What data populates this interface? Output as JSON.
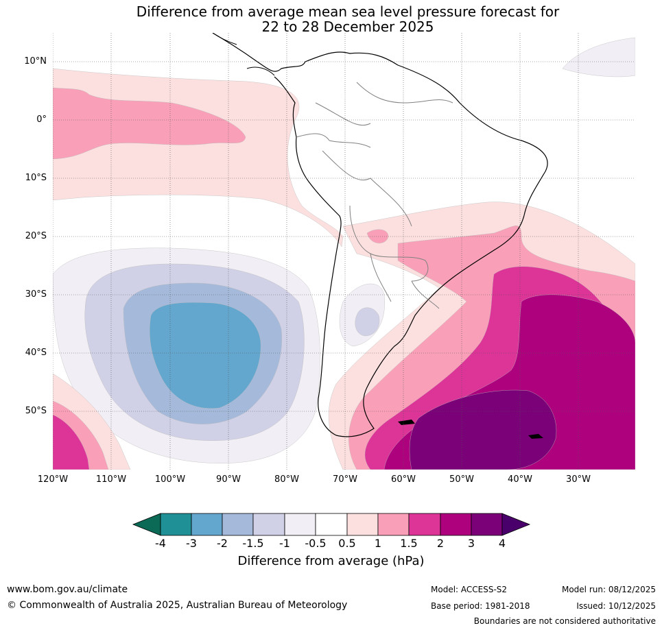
{
  "title": {
    "line1": "Difference from average mean sea level pressure forecast for",
    "line2": "22 to 28 December 2025"
  },
  "map": {
    "lat_labels": [
      "10°N",
      "0°",
      "10°S",
      "20°S",
      "30°S",
      "40°S",
      "50°S"
    ],
    "lon_labels": [
      "120°W",
      "110°W",
      "100°W",
      "90°W",
      "80°W",
      "70°W",
      "60°W",
      "50°W",
      "40°W",
      "30°W"
    ],
    "colors": {
      "neg4": "#0b6a55",
      "neg3": "#1f9096",
      "neg2": "#63a7cf",
      "neg1_5": "#a5b9db",
      "neg1": "#d0d1e6",
      "neg0_5": "#f2eef5",
      "zero": "#ffffff",
      "pos0_5": "#fce0df",
      "pos1": "#f9a0b8",
      "pos1_5": "#dd3497",
      "pos2": "#ae017e",
      "pos3": "#7a0177",
      "pos4": "#49006a",
      "land": "#000000",
      "border": "#808080"
    }
  },
  "colorbar": {
    "ticks": [
      "-4",
      "-3",
      "-2",
      "-1.5",
      "-1",
      "-0.5",
      "0.5",
      "1",
      "1.5",
      "2",
      "3",
      "4"
    ],
    "label": "Difference from average (hPa)"
  },
  "footer": {
    "website": "www.bom.gov.au/climate",
    "copyright": "© Commonwealth of Australia 2025, Australian Bureau of Meteorology",
    "model": "Model: ACCESS-S2",
    "base_period": "Base period: 1981-2018",
    "model_run": "Model run: 08/12/2025",
    "issued": "Issued: 10/12/2025",
    "disclaimer": "Boundaries are not considered authoritative"
  }
}
